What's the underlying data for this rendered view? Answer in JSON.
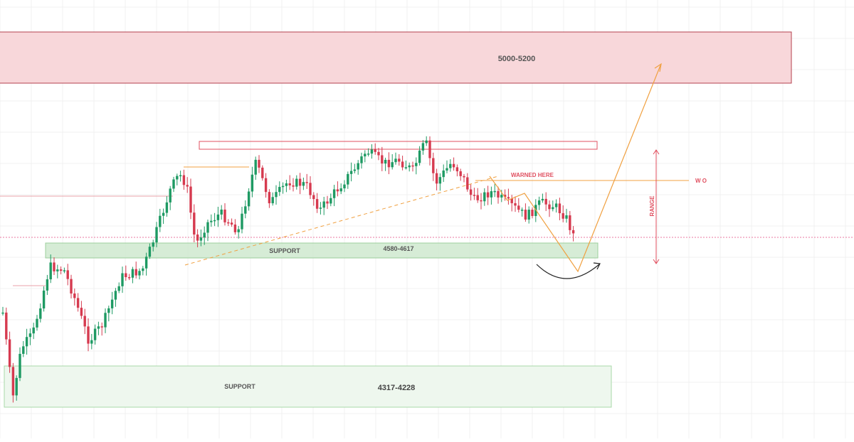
{
  "chart_data": {
    "type": "candlestick",
    "grid": true,
    "colors": {
      "up": "#1e9a63",
      "down": "#d63a4f",
      "resistance_zone_fill": "#f8d7da",
      "resistance_zone_stroke": "#b5424f",
      "support_zone_fill": "#cfe9cf",
      "support_zone_stroke": "#9ccf9c",
      "lower_support_fill": "#eef7ee",
      "trend_line": "#f0a040",
      "warning_text": "#e05060",
      "range_marker": "#e04d5c",
      "current_price_line": "#e87aa0"
    },
    "zones": [
      {
        "id": "resistance",
        "label": "5000-5200"
      },
      {
        "id": "upper-support",
        "label": "SUPPORT",
        "value_label": "4580-4617"
      },
      {
        "id": "lower-support",
        "label": "SUPPORT",
        "value_label": "4317-4228"
      }
    ],
    "annotations": {
      "warning": "WARNED HERE",
      "wo": "W O",
      "range": "RANGE"
    }
  }
}
